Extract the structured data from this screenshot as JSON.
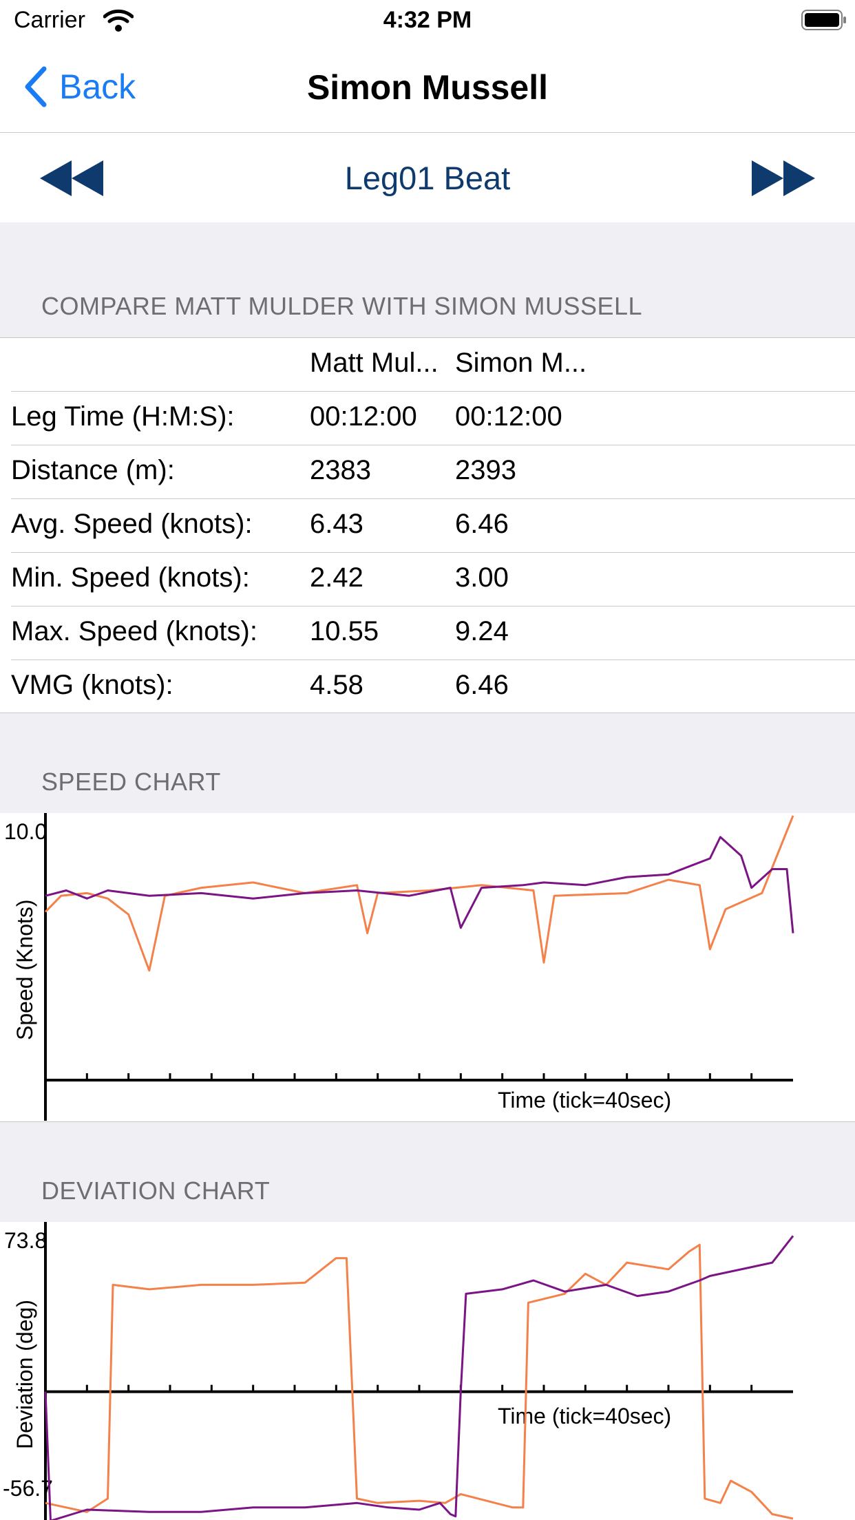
{
  "status_bar": {
    "carrier": "Carrier",
    "time": "4:32 PM"
  },
  "nav": {
    "back_label": "Back",
    "title": "Simon Mussell"
  },
  "leg": {
    "title": "Leg01 Beat"
  },
  "compare": {
    "header": "COMPARE MATT MULDER WITH SIMON MUSSELL",
    "columns": [
      "Matt Mul...",
      "Simon M..."
    ],
    "rows": [
      {
        "label": "Leg Time (H:M:S):",
        "a": "00:12:00",
        "b": "00:12:00"
      },
      {
        "label": "Distance (m):",
        "a": "2383",
        "b": "2393"
      },
      {
        "label": "Avg. Speed (knots):",
        "a": "6.43",
        "b": "6.46"
      },
      {
        "label": "Min. Speed (knots):",
        "a": "2.42",
        "b": "3.00"
      },
      {
        "label": "Max. Speed (knots):",
        "a": "10.55",
        "b": "9.24"
      },
      {
        "label": "VMG (knots):",
        "a": "4.58",
        "b": "6.46"
      }
    ]
  },
  "colors": {
    "series_a": "#f4814a",
    "series_b": "#7b1485",
    "accent": "#1a7cf5",
    "leg_title": "#0e3a6e"
  },
  "chart_data": [
    {
      "type": "line",
      "section_header": "SPEED CHART",
      "ymax_label": "10.0",
      "ylabel": "Speed (Knots)",
      "xlabel": "Time (tick=40sec)",
      "ylim": [
        0,
        10.0
      ],
      "x_range_sec": [
        0,
        720
      ],
      "series": [
        {
          "color": "#f4814a",
          "points": [
            [
              0,
              6.3
            ],
            [
              15,
              6.9
            ],
            [
              40,
              7.0
            ],
            [
              60,
              6.8
            ],
            [
              80,
              6.2
            ],
            [
              100,
              4.1
            ],
            [
              115,
              6.9
            ],
            [
              150,
              7.2
            ],
            [
              200,
              7.4
            ],
            [
              250,
              7.0
            ],
            [
              300,
              7.3
            ],
            [
              310,
              5.5
            ],
            [
              320,
              7.0
            ],
            [
              370,
              7.1
            ],
            [
              420,
              7.3
            ],
            [
              470,
              7.1
            ],
            [
              480,
              4.4
            ],
            [
              490,
              6.9
            ],
            [
              560,
              7.0
            ],
            [
              600,
              7.5
            ],
            [
              630,
              7.3
            ],
            [
              640,
              4.9
            ],
            [
              655,
              6.4
            ],
            [
              690,
              7.0
            ],
            [
              720,
              9.9
            ]
          ]
        },
        {
          "color": "#7b1485",
          "points": [
            [
              0,
              6.9
            ],
            [
              20,
              7.1
            ],
            [
              40,
              6.8
            ],
            [
              60,
              7.1
            ],
            [
              100,
              6.9
            ],
            [
              150,
              7.0
            ],
            [
              200,
              6.8
            ],
            [
              250,
              7.0
            ],
            [
              300,
              7.1
            ],
            [
              350,
              6.9
            ],
            [
              390,
              7.2
            ],
            [
              400,
              5.7
            ],
            [
              420,
              7.2
            ],
            [
              460,
              7.3
            ],
            [
              480,
              7.4
            ],
            [
              520,
              7.3
            ],
            [
              560,
              7.6
            ],
            [
              600,
              7.7
            ],
            [
              640,
              8.3
            ],
            [
              650,
              9.1
            ],
            [
              670,
              8.4
            ],
            [
              680,
              7.2
            ],
            [
              700,
              7.9
            ],
            [
              714,
              7.9
            ],
            [
              720,
              5.5
            ]
          ]
        }
      ]
    },
    {
      "type": "line",
      "section_header": "DEVIATION CHART",
      "ymax_label": "73.8",
      "ymin_label": "-56.7",
      "ylabel": "Deviation (deg)",
      "xlabel": "Time (tick=40sec)",
      "ylim": [
        -56.7,
        73.8
      ],
      "x_range_sec": [
        0,
        720
      ],
      "series": [
        {
          "color": "#f4814a",
          "points": [
            [
              0,
              -50
            ],
            [
              40,
              -54
            ],
            [
              60,
              -48
            ],
            [
              65,
              48
            ],
            [
              100,
              46
            ],
            [
              150,
              48
            ],
            [
              200,
              48
            ],
            [
              250,
              49
            ],
            [
              280,
              60
            ],
            [
              290,
              60
            ],
            [
              300,
              -48
            ],
            [
              320,
              -50
            ],
            [
              360,
              -49
            ],
            [
              385,
              -50
            ],
            [
              400,
              -46
            ],
            [
              450,
              -52
            ],
            [
              460,
              -52
            ],
            [
              465,
              40
            ],
            [
              500,
              44
            ],
            [
              520,
              53
            ],
            [
              540,
              48
            ],
            [
              560,
              58
            ],
            [
              600,
              55
            ],
            [
              620,
              63
            ],
            [
              630,
              66
            ],
            [
              635,
              -48
            ],
            [
              650,
              -50
            ],
            [
              660,
              -40
            ],
            [
              680,
              -45
            ],
            [
              700,
              -55
            ],
            [
              720,
              -57
            ]
          ]
        },
        {
          "color": "#7b1485",
          "points": [
            [
              0,
              0
            ],
            [
              5,
              -58
            ],
            [
              40,
              -53
            ],
            [
              100,
              -54
            ],
            [
              150,
              -54
            ],
            [
              200,
              -52
            ],
            [
              250,
              -52
            ],
            [
              300,
              -50
            ],
            [
              330,
              -52
            ],
            [
              360,
              -53
            ],
            [
              380,
              -50
            ],
            [
              390,
              -55
            ],
            [
              395,
              -56
            ],
            [
              400,
              0
            ],
            [
              405,
              44
            ],
            [
              440,
              46
            ],
            [
              470,
              50
            ],
            [
              500,
              45
            ],
            [
              540,
              48
            ],
            [
              570,
              43
            ],
            [
              600,
              45
            ],
            [
              630,
              50
            ],
            [
              640,
              52
            ],
            [
              680,
              56
            ],
            [
              700,
              58
            ],
            [
              720,
              70
            ]
          ]
        }
      ]
    }
  ]
}
